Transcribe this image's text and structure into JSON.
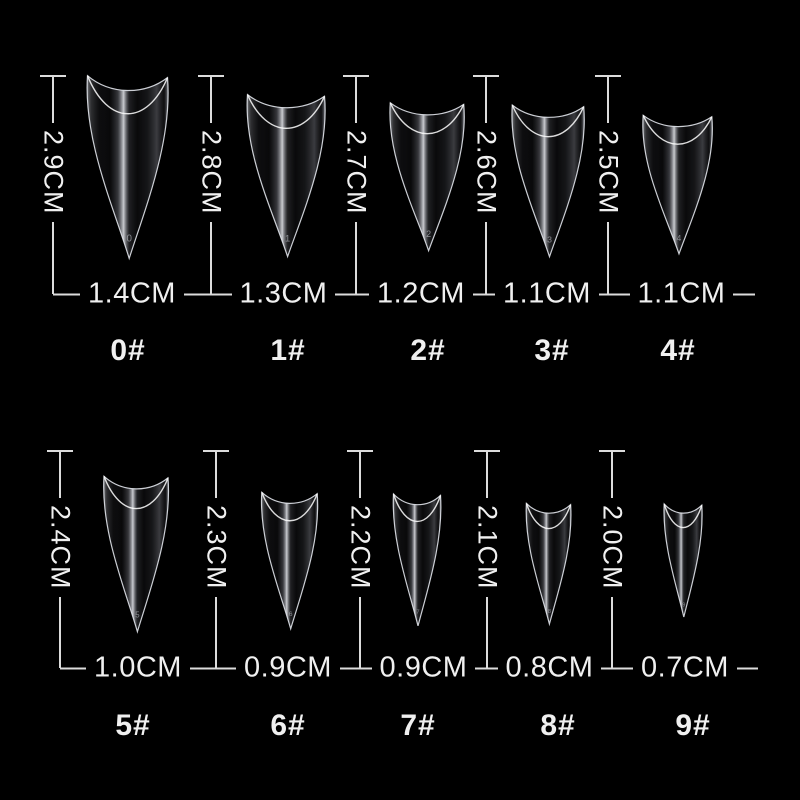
{
  "colors": {
    "background": "#000000",
    "measure_line": "#dcdcdc",
    "label_text": "#f0f0f0"
  },
  "rows": [
    {
      "tips": [
        {
          "size_label": "0#",
          "length": "2.9CM",
          "width": "1.4CM",
          "mold_digit": "0"
        },
        {
          "size_label": "1#",
          "length": "2.8CM",
          "width": "1.3CM",
          "mold_digit": "1"
        },
        {
          "size_label": "2#",
          "length": "2.7CM",
          "width": "1.2CM",
          "mold_digit": "2"
        },
        {
          "size_label": "3#",
          "length": "2.6CM",
          "width": "1.1CM",
          "mold_digit": "3"
        },
        {
          "size_label": "4#",
          "length": "2.5CM",
          "width": "1.1CM",
          "mold_digit": "4"
        }
      ]
    },
    {
      "tips": [
        {
          "size_label": "5#",
          "length": "2.4CM",
          "width": "1.0CM",
          "mold_digit": "5"
        },
        {
          "size_label": "6#",
          "length": "2.3CM",
          "width": "0.9CM",
          "mold_digit": "6"
        },
        {
          "size_label": "7#",
          "length": "2.2CM",
          "width": "0.9CM",
          "mold_digit": "7"
        },
        {
          "size_label": "8#",
          "length": "2.1CM",
          "width": "0.8CM",
          "mold_digit": "8"
        },
        {
          "size_label": "9#",
          "length": "2.0CM",
          "width": "0.7CM",
          "mold_digit": "9"
        }
      ]
    }
  ]
}
